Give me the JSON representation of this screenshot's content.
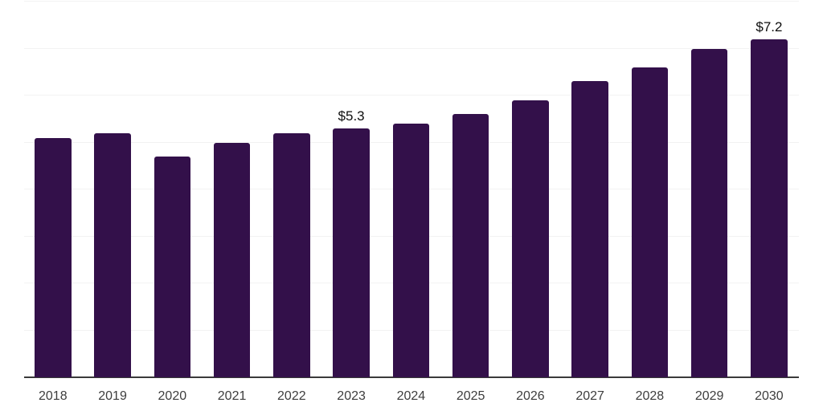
{
  "chart_data": {
    "type": "bar",
    "title": "",
    "xlabel": "",
    "ylabel": "",
    "categories": [
      "2018",
      "2019",
      "2020",
      "2021",
      "2022",
      "2023",
      "2024",
      "2025",
      "2026",
      "2027",
      "2028",
      "2029",
      "2030"
    ],
    "values": [
      5.1,
      5.2,
      4.7,
      5.0,
      5.2,
      5.3,
      5.4,
      5.6,
      5.9,
      6.3,
      6.6,
      7.0,
      7.2
    ],
    "data_labels": {
      "2023": "$5.3",
      "2030": "$7.2"
    },
    "ylim": [
      0,
      8
    ],
    "gridline_values": [
      1,
      2,
      3,
      4,
      5,
      6,
      7,
      8
    ],
    "grid": "horizontal",
    "legend": "none",
    "colors": {
      "bar": "#33104a",
      "gridline": "#f2f2f2",
      "axis": "#3a3a3a",
      "tick_label": "#3d3d3d",
      "value_label": "#0d0d0d",
      "background": "#ffffff"
    }
  }
}
